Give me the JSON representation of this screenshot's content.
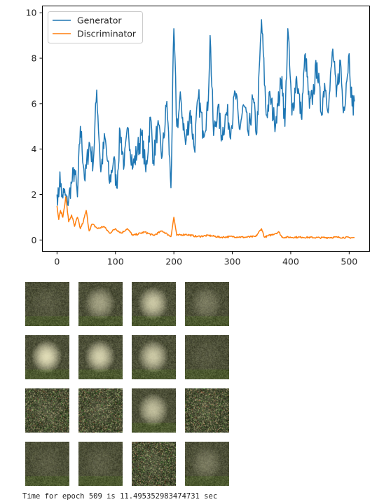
{
  "chart_data": {
    "type": "line",
    "title": "",
    "xlabel": "",
    "ylabel": "",
    "xlim": [
      -25,
      535
    ],
    "ylim": [
      -0.5,
      10.3
    ],
    "x_ticks": [
      0,
      100,
      200,
      300,
      400,
      500
    ],
    "y_ticks": [
      0,
      2,
      4,
      6,
      8,
      10
    ],
    "grid": false,
    "legend_position": "top-left",
    "num_points": 510,
    "series": [
      {
        "name": "Generator",
        "color": "#1f77b4",
        "keypoints": [
          [
            0,
            2.0
          ],
          [
            3,
            1.9
          ],
          [
            5,
            3.0
          ],
          [
            8,
            1.9
          ],
          [
            12,
            2.1
          ],
          [
            18,
            1.6
          ],
          [
            25,
            2.5
          ],
          [
            30,
            3.1
          ],
          [
            35,
            1.9
          ],
          [
            40,
            5.0
          ],
          [
            48,
            2.6
          ],
          [
            55,
            4.3
          ],
          [
            62,
            3.4
          ],
          [
            68,
            6.6
          ],
          [
            75,
            3.0
          ],
          [
            82,
            4.5
          ],
          [
            90,
            2.5
          ],
          [
            97,
            3.6
          ],
          [
            102,
            2.3
          ],
          [
            108,
            4.8
          ],
          [
            115,
            3.3
          ],
          [
            122,
            4.9
          ],
          [
            130,
            3.2
          ],
          [
            138,
            4.0
          ],
          [
            145,
            4.6
          ],
          [
            152,
            3.0
          ],
          [
            160,
            5.4
          ],
          [
            165,
            3.5
          ],
          [
            172,
            5.0
          ],
          [
            180,
            3.7
          ],
          [
            188,
            6.1
          ],
          [
            195,
            2.3
          ],
          [
            200,
            9.3
          ],
          [
            205,
            5.0
          ],
          [
            212,
            6.2
          ],
          [
            220,
            4.2
          ],
          [
            228,
            5.7
          ],
          [
            235,
            4.0
          ],
          [
            242,
            6.3
          ],
          [
            250,
            4.8
          ],
          [
            258,
            5.7
          ],
          [
            262,
            9.0
          ],
          [
            268,
            4.6
          ],
          [
            275,
            5.8
          ],
          [
            282,
            4.6
          ],
          [
            290,
            5.6
          ],
          [
            298,
            4.9
          ],
          [
            305,
            6.5
          ],
          [
            312,
            4.9
          ],
          [
            320,
            5.9
          ],
          [
            328,
            4.6
          ],
          [
            335,
            6.2
          ],
          [
            342,
            4.7
          ],
          [
            350,
            9.7
          ],
          [
            358,
            5.5
          ],
          [
            365,
            6.3
          ],
          [
            372,
            5.2
          ],
          [
            378,
            5.9
          ],
          [
            385,
            7.2
          ],
          [
            390,
            5.0
          ],
          [
            395,
            9.3
          ],
          [
            402,
            5.5
          ],
          [
            410,
            7.2
          ],
          [
            418,
            5.4
          ],
          [
            425,
            8.2
          ],
          [
            432,
            5.8
          ],
          [
            438,
            6.4
          ],
          [
            445,
            7.8
          ],
          [
            452,
            5.6
          ],
          [
            458,
            6.9
          ],
          [
            465,
            5.9
          ],
          [
            472,
            8.4
          ],
          [
            478,
            6.3
          ],
          [
            485,
            7.9
          ],
          [
            490,
            5.6
          ],
          [
            495,
            6.9
          ],
          [
            500,
            8.2
          ],
          [
            505,
            5.9
          ],
          [
            509,
            6.1
          ]
        ]
      },
      {
        "name": "Discriminator",
        "color": "#ff7f0e",
        "keypoints": [
          [
            0,
            1.5
          ],
          [
            3,
            0.9
          ],
          [
            6,
            1.3
          ],
          [
            10,
            1.0
          ],
          [
            15,
            1.9
          ],
          [
            20,
            0.8
          ],
          [
            25,
            1.1
          ],
          [
            30,
            0.6
          ],
          [
            35,
            1.0
          ],
          [
            40,
            0.5
          ],
          [
            45,
            0.8
          ],
          [
            50,
            1.3
          ],
          [
            55,
            0.4
          ],
          [
            60,
            0.7
          ],
          [
            70,
            0.5
          ],
          [
            80,
            0.6
          ],
          [
            90,
            0.3
          ],
          [
            100,
            0.5
          ],
          [
            110,
            0.3
          ],
          [
            120,
            0.5
          ],
          [
            130,
            0.2
          ],
          [
            150,
            0.35
          ],
          [
            165,
            0.2
          ],
          [
            180,
            0.4
          ],
          [
            195,
            0.15
          ],
          [
            200,
            1.0
          ],
          [
            205,
            0.2
          ],
          [
            220,
            0.25
          ],
          [
            240,
            0.15
          ],
          [
            260,
            0.2
          ],
          [
            280,
            0.12
          ],
          [
            300,
            0.15
          ],
          [
            320,
            0.12
          ],
          [
            340,
            0.15
          ],
          [
            350,
            0.5
          ],
          [
            355,
            0.12
          ],
          [
            380,
            0.35
          ],
          [
            385,
            0.12
          ],
          [
            420,
            0.12
          ],
          [
            450,
            0.1
          ],
          [
            480,
            0.12
          ],
          [
            509,
            0.1
          ]
        ]
      }
    ]
  },
  "samples": {
    "rows": 4,
    "cols": 4,
    "tiles": [
      {
        "tone": "dark",
        "brightness": 0.1
      },
      {
        "tone": "light",
        "brightness": 0.55
      },
      {
        "tone": "light",
        "brightness": 0.75
      },
      {
        "tone": "light",
        "brightness": 0.3
      },
      {
        "tone": "light",
        "brightness": 0.85
      },
      {
        "tone": "light",
        "brightness": 0.8
      },
      {
        "tone": "light",
        "brightness": 0.75
      },
      {
        "tone": "dark",
        "brightness": 0.08
      },
      {
        "tone": "speckled",
        "brightness": 0.1
      },
      {
        "tone": "speckled",
        "brightness": 0.12
      },
      {
        "tone": "light",
        "brightness": 0.7
      },
      {
        "tone": "speckled",
        "brightness": 0.08
      },
      {
        "tone": "dark",
        "brightness": 0.1
      },
      {
        "tone": "dark",
        "brightness": 0.12
      },
      {
        "tone": "speckled",
        "brightness": 0.1
      },
      {
        "tone": "light",
        "brightness": 0.3
      }
    ]
  },
  "status": {
    "text": "Time for epoch 509 is 11.495352983474731 sec"
  }
}
